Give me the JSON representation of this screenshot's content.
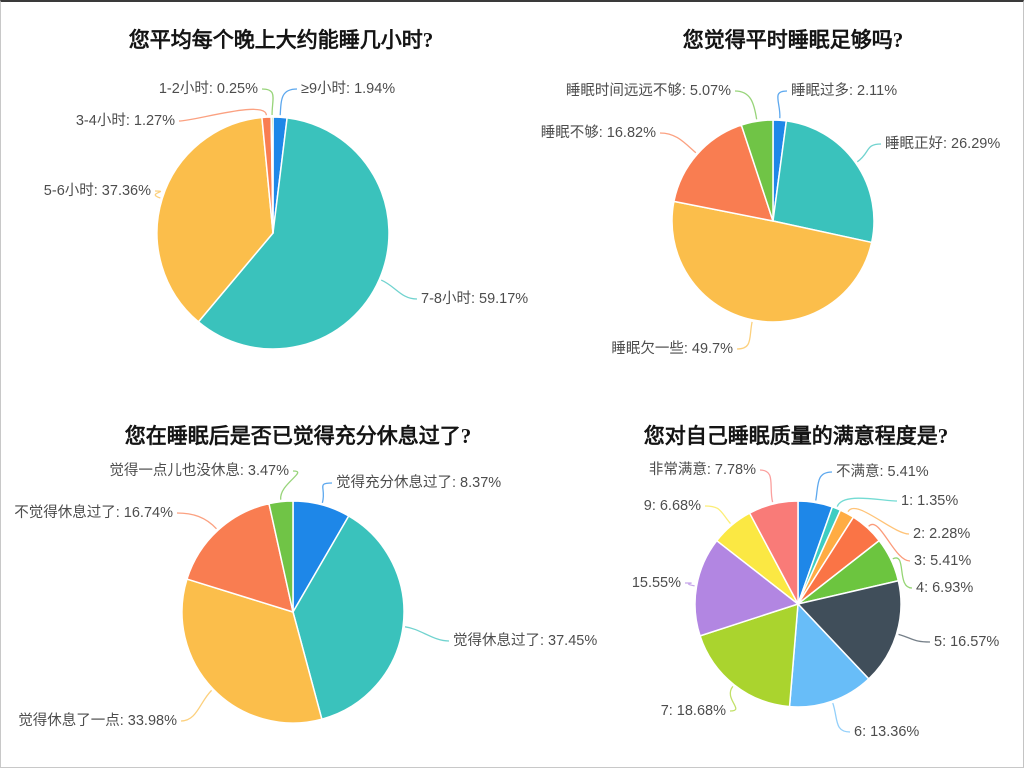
{
  "chart_data": [
    {
      "type": "pie",
      "title": "您平均每个晚上大约能睡几小时?",
      "legend": "none",
      "label_style": "outside-leader-lines",
      "slices": [
        {
          "label": "≥9小时",
          "pct": "1.94",
          "color": "#1E87E8"
        },
        {
          "label": "7-8小时",
          "pct": "59.17",
          "color": "#3AC2BC"
        },
        {
          "label": "5-6小时",
          "pct": "37.36",
          "color": "#FBBE4B"
        },
        {
          "label": "3-4小时",
          "pct": "1.27",
          "color": "#F97D51"
        },
        {
          "label": "1-2小时",
          "pct": "0.25",
          "color": "#70C446"
        }
      ]
    },
    {
      "type": "pie",
      "title": "您觉得平时睡眠足够吗?",
      "legend": "none",
      "label_style": "outside-leader-lines",
      "slices": [
        {
          "label": "睡眠过多",
          "pct": "2.11",
          "color": "#1E87E8"
        },
        {
          "label": "睡眠正好",
          "pct": "26.29",
          "color": "#3AC2BC"
        },
        {
          "label": "睡眠欠一些",
          "pct": "49.7",
          "color": "#FBBE4B"
        },
        {
          "label": "睡眠不够",
          "pct": "16.82",
          "color": "#F97D51"
        },
        {
          "label": "睡眠时间远远不够",
          "pct": "5.07",
          "color": "#70C446"
        }
      ]
    },
    {
      "type": "pie",
      "title": "您在睡眠后是否已觉得充分休息过了?",
      "legend": "none",
      "label_style": "outside-leader-lines",
      "slices": [
        {
          "label": "觉得充分休息过了",
          "pct": "8.37",
          "color": "#1E87E8"
        },
        {
          "label": "觉得休息过了",
          "pct": "37.45",
          "color": "#3AC2BC"
        },
        {
          "label": "觉得休息了一点",
          "pct": "33.98",
          "color": "#FBBE4B"
        },
        {
          "label": "不觉得休息过了",
          "pct": "16.74",
          "color": "#F97D51"
        },
        {
          "label": "觉得一点儿也没休息",
          "pct": "3.47",
          "color": "#70C446"
        }
      ]
    },
    {
      "type": "pie",
      "title": "您对自己睡眠质量的满意程度是?",
      "legend": "none",
      "label_style": "outside-leader-lines",
      "slices": [
        {
          "label": "不满意",
          "pct": "5.41",
          "color": "#1E87E8"
        },
        {
          "label": "1",
          "pct": "1.35",
          "color": "#3ECDC2"
        },
        {
          "label": "2",
          "pct": "2.28",
          "color": "#FFAC43"
        },
        {
          "label": "3",
          "pct": "5.41",
          "color": "#FA7446"
        },
        {
          "label": "4",
          "pct": "6.93",
          "color": "#6CC53F"
        },
        {
          "label": "5",
          "pct": "16.57",
          "color": "#404E5A"
        },
        {
          "label": "6",
          "pct": "13.36",
          "color": "#68BDF8"
        },
        {
          "label": "7",
          "pct": "18.68",
          "color": "#AAD42E"
        },
        {
          "label": "",
          "pct": "15.55",
          "color": "#B286E2"
        },
        {
          "label": "9",
          "pct": "6.68",
          "color": "#FBE843"
        },
        {
          "label": "非常满意",
          "pct": "7.78",
          "color": "#F97B78"
        }
      ]
    }
  ]
}
